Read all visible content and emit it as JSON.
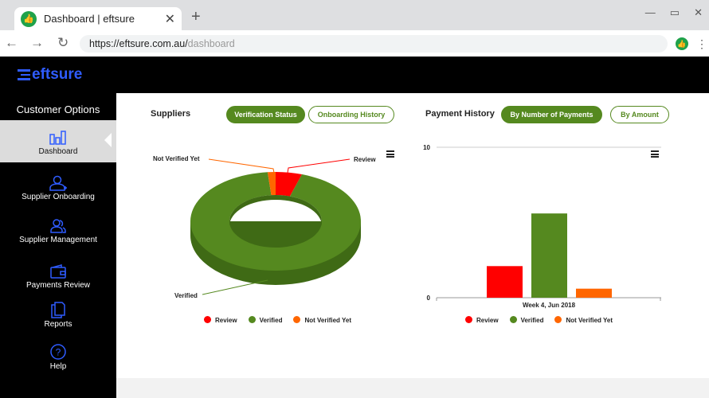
{
  "browser": {
    "tab_title": "Dashboard | eftsure",
    "url_host": "https://eftsure.com.au/",
    "url_path": "dashboard"
  },
  "brand": {
    "logo": "eftsure",
    "accent": "#2f5cff"
  },
  "sidebar": {
    "heading": "Customer Options",
    "items": [
      {
        "label": "Dashboard",
        "icon": "bar-chart-icon",
        "active": true
      },
      {
        "label": "Supplier Onboarding",
        "icon": "user-add-icon"
      },
      {
        "label": "Supplier Management",
        "icon": "users-icon"
      },
      {
        "label": "Payments Review",
        "icon": "wallet-icon"
      },
      {
        "label": "Reports",
        "icon": "documents-icon"
      },
      {
        "label": "Help",
        "icon": "help-circle-icon"
      }
    ]
  },
  "suppliers": {
    "title": "Suppliers",
    "tabs": [
      "Verification Status",
      "Onboarding History"
    ],
    "active_tab": "Verification Status"
  },
  "payment": {
    "title": "Payment History",
    "tabs": [
      "By Number of Payments",
      "By Amount"
    ],
    "active_tab": "By Number of Payments"
  },
  "chart_data": [
    {
      "type": "pie",
      "variant": "3d-donut",
      "slices": [
        {
          "name": "Review",
          "value": 5,
          "color": "#ff0000"
        },
        {
          "name": "Verified",
          "value": 93.5,
          "color": "#55891f"
        },
        {
          "name": "Not Verified Yet",
          "value": 1.5,
          "color": "#ff6600"
        }
      ],
      "legend": "bottom"
    },
    {
      "type": "bar",
      "categories": [
        "Week 4, Jun 2018"
      ],
      "ylim": [
        0,
        10
      ],
      "yticks": [
        "0",
        "10"
      ],
      "series": [
        {
          "name": "Review",
          "values": [
            2.1
          ],
          "color": "#ff0000"
        },
        {
          "name": "Verified",
          "values": [
            5.6
          ],
          "color": "#55891f"
        },
        {
          "name": "Not Verified Yet",
          "values": [
            0.6
          ],
          "color": "#ff6600"
        }
      ],
      "legend": "bottom"
    }
  ]
}
